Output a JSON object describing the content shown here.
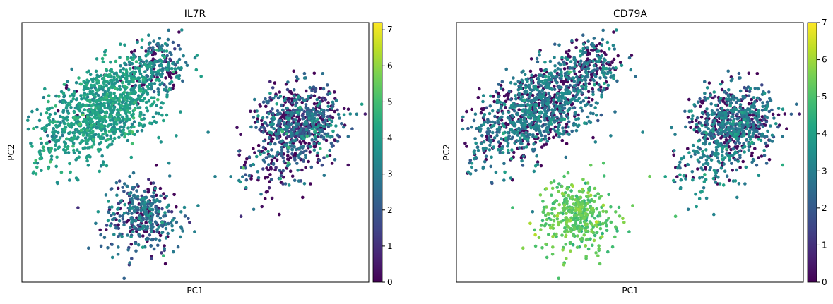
{
  "chart_data": [
    {
      "type": "scatter",
      "title": "IL7R",
      "xlabel": "PC1",
      "ylabel": "PC2",
      "xticks": "none",
      "yticks": "none",
      "grid": false,
      "colormap": "viridis",
      "colorbar": {
        "min": 0,
        "max": 7.2,
        "ticks": [
          0,
          1,
          2,
          3,
          4,
          5,
          6,
          7
        ]
      },
      "clusters": [
        {
          "name": "upper-left",
          "n": 1050,
          "center": [
            -2.5,
            1.6
          ],
          "spread": [
            1.0,
            0.55
          ],
          "rotation": 0.55,
          "expr_mean": 3.9,
          "expr_sd": 0.45,
          "zero_frac": 0.02
        },
        {
          "name": "upper-left-tip",
          "n": 180,
          "center": [
            -1.0,
            2.9
          ],
          "spread": [
            0.45,
            0.35
          ],
          "rotation": 0.4,
          "expr_mean": 3.0,
          "expr_sd": 0.7,
          "zero_frac": 0.3
        },
        {
          "name": "right",
          "n": 650,
          "center": [
            2.9,
            1.3
          ],
          "spread": [
            0.55,
            0.48
          ],
          "rotation": 0.15,
          "expr_mean": 2.5,
          "expr_sd": 0.9,
          "zero_frac": 0.38
        },
        {
          "name": "right-scatter",
          "n": 150,
          "center": [
            2.3,
            0.2
          ],
          "spread": [
            0.55,
            0.5
          ],
          "rotation": 0.0,
          "expr_mean": 2.5,
          "expr_sd": 1.0,
          "zero_frac": 0.45
        },
        {
          "name": "lower",
          "n": 370,
          "center": [
            -1.4,
            -1.3
          ],
          "spread": [
            0.55,
            0.5
          ],
          "rotation": 0.0,
          "expr_mean": 2.6,
          "expr_sd": 0.8,
          "zero_frac": 0.2
        }
      ],
      "xlim": [
        -4.7,
        4.8
      ],
      "ylim": [
        -3.1,
        4.0
      ]
    },
    {
      "type": "scatter",
      "title": "CD79A",
      "xlabel": "PC1",
      "ylabel": "PC2",
      "xticks": "none",
      "yticks": "none",
      "grid": false,
      "colormap": "viridis",
      "colorbar": {
        "min": 0,
        "max": 7.0,
        "ticks": [
          0,
          1,
          2,
          3,
          4,
          5,
          6,
          7
        ]
      },
      "clusters": [
        {
          "name": "upper-left",
          "n": 1050,
          "center": [
            -2.5,
            1.6
          ],
          "spread": [
            1.0,
            0.55
          ],
          "rotation": 0.55,
          "expr_mean": 2.9,
          "expr_sd": 0.5,
          "zero_frac": 0.28
        },
        {
          "name": "upper-left-tip",
          "n": 180,
          "center": [
            -1.0,
            2.9
          ],
          "spread": [
            0.45,
            0.35
          ],
          "rotation": 0.4,
          "expr_mean": 2.9,
          "expr_sd": 0.6,
          "zero_frac": 0.5
        },
        {
          "name": "right",
          "n": 650,
          "center": [
            2.9,
            1.3
          ],
          "spread": [
            0.55,
            0.48
          ],
          "rotation": 0.15,
          "expr_mean": 2.8,
          "expr_sd": 0.6,
          "zero_frac": 0.32
        },
        {
          "name": "right-scatter",
          "n": 150,
          "center": [
            2.3,
            0.2
          ],
          "spread": [
            0.55,
            0.5
          ],
          "rotation": 0.0,
          "expr_mean": 3.3,
          "expr_sd": 0.5,
          "zero_frac": 0.15
        },
        {
          "name": "lower",
          "n": 370,
          "center": [
            -1.4,
            -1.3
          ],
          "spread": [
            0.55,
            0.5
          ],
          "rotation": 0.0,
          "expr_mean": 5.2,
          "expr_sd": 0.35,
          "zero_frac": 0.0
        }
      ],
      "xlim": [
        -4.7,
        4.8
      ],
      "ylim": [
        -3.1,
        4.0
      ]
    }
  ]
}
